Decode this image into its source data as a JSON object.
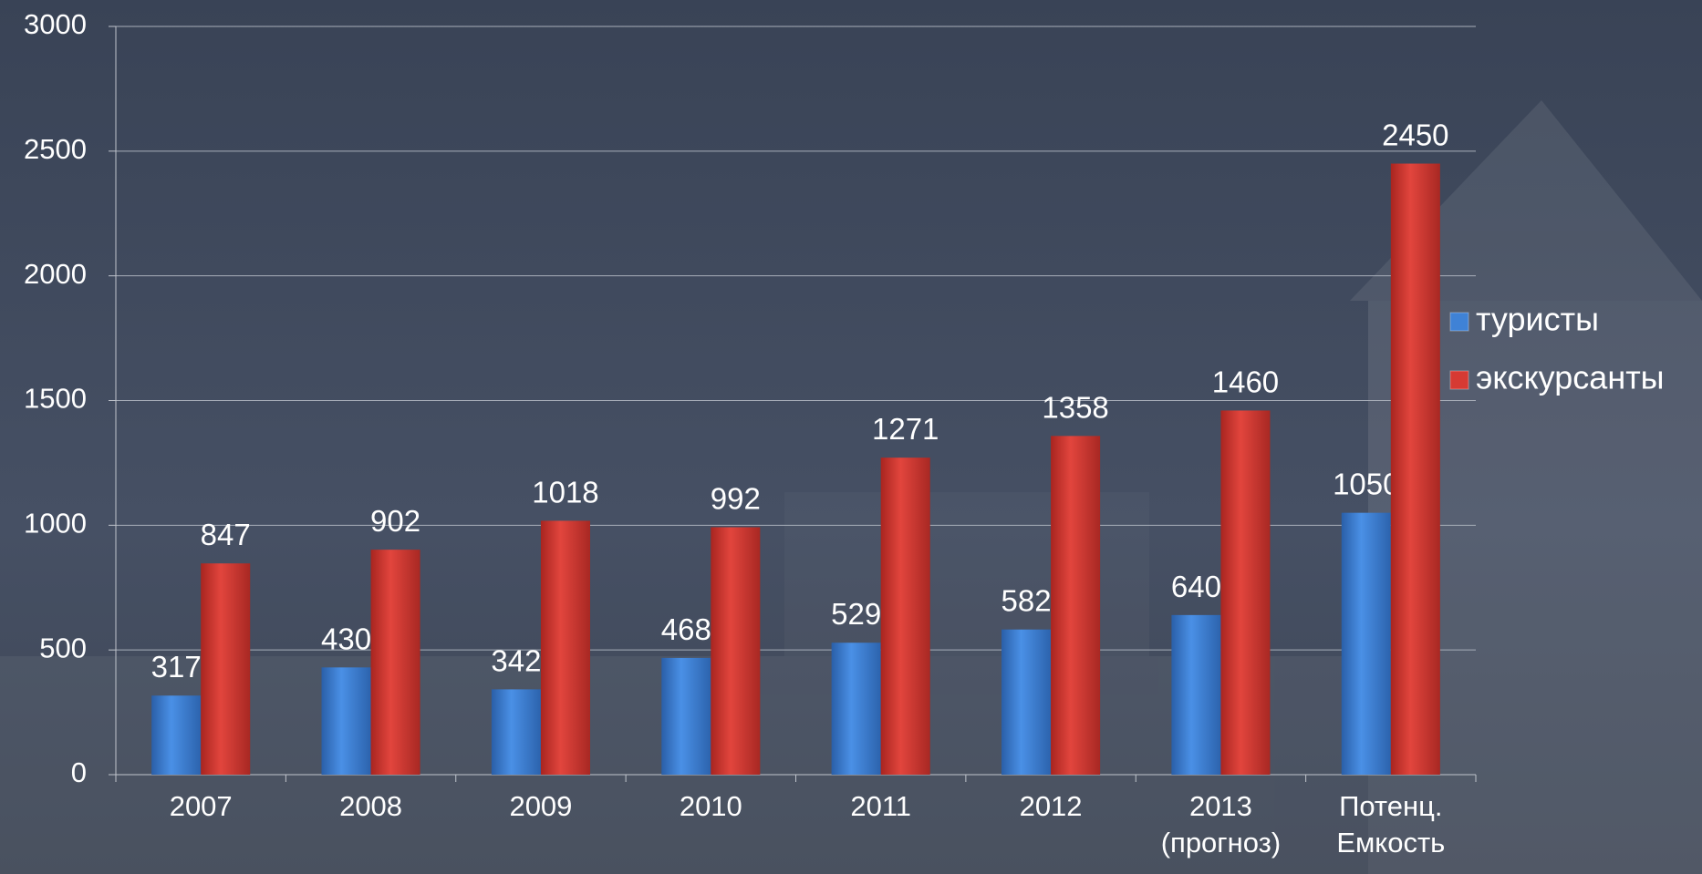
{
  "chart_data": {
    "type": "bar",
    "categories": [
      "2007",
      "2008",
      "2009",
      "2010",
      "2011",
      "2012",
      "2013\n(прогноз)",
      "Потенц.\nЕмкость"
    ],
    "series": [
      {
        "name": "туристы",
        "color": "#3f82d6",
        "values": [
          317,
          430,
          342,
          468,
          529,
          582,
          640,
          1050
        ]
      },
      {
        "name": "экскурсанты",
        "color": "#d63a33",
        "values": [
          847,
          902,
          1018,
          992,
          1271,
          1358,
          1460,
          2450
        ]
      }
    ],
    "ylim": [
      0,
      3000
    ],
    "yticks": [
      0,
      500,
      1000,
      1500,
      2000,
      2500,
      3000
    ],
    "grid": true,
    "legend": "right"
  }
}
